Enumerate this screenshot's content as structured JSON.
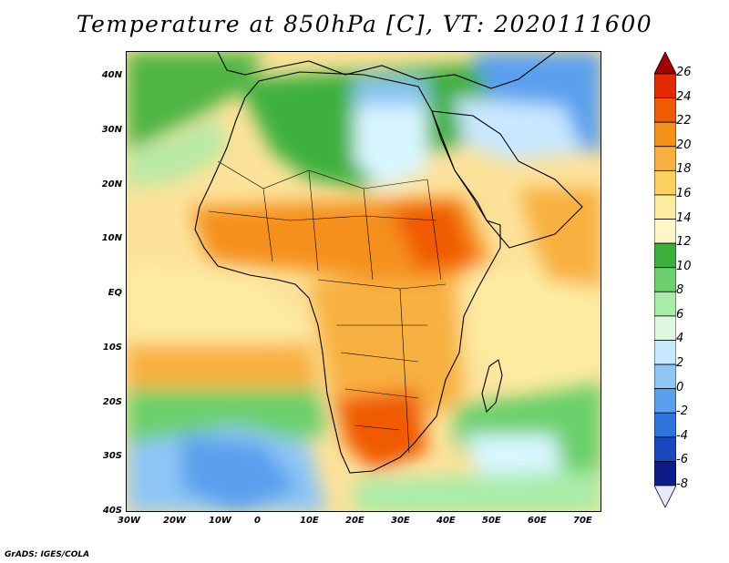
{
  "title": "Temperature at 850hPa [C], VT: 2020111600",
  "credit": "GrADS: IGES/COLA",
  "map": {
    "lat_labels": [
      "40N",
      "30N",
      "20N",
      "10N",
      "EQ",
      "10S",
      "20S",
      "30S",
      "40S"
    ],
    "lon_labels": [
      "30W",
      "20W",
      "10W",
      "0",
      "10E",
      "20E",
      "30E",
      "40E",
      "50E",
      "60E",
      "70E"
    ]
  },
  "colorbar": {
    "labels": [
      "26",
      "24",
      "22",
      "20",
      "18",
      "16",
      "14",
      "12",
      "10",
      "8",
      "6",
      "4",
      "2",
      "0",
      "-2",
      "-4",
      "-6",
      "-8"
    ],
    "colors": [
      "#a50000",
      "#e62a00",
      "#f05a00",
      "#f5901a",
      "#f8b040",
      "#fbd060",
      "#fdeca0",
      "#fdf7c8",
      "#3cb03c",
      "#6cd06c",
      "#a8eca8",
      "#e0f8e0",
      "#c8e8ff",
      "#8ec6f6",
      "#5aa0ee",
      "#2e74dc",
      "#1a48c0",
      "#0c1c88",
      "#e8e8ff"
    ]
  }
}
